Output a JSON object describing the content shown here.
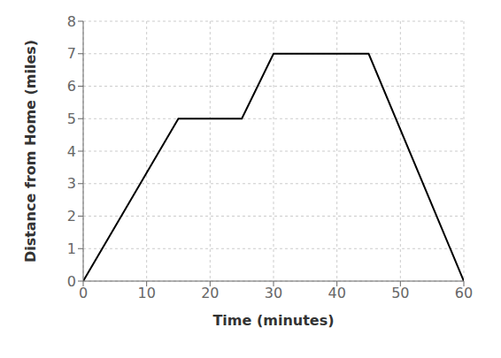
{
  "chart_data": {
    "type": "line",
    "x": [
      0,
      15,
      25,
      30,
      45,
      60
    ],
    "values": [
      0,
      5,
      5,
      7,
      7,
      0
    ],
    "xlabel": "Time (minutes)",
    "ylabel": "Distance from Home (miles)",
    "xlim": [
      0,
      60
    ],
    "ylim": [
      0,
      8
    ],
    "xticks": [
      0,
      10,
      20,
      30,
      40,
      50,
      60
    ],
    "yticks": [
      0,
      1,
      2,
      3,
      4,
      5,
      6,
      7,
      8
    ],
    "grid": true,
    "color": "#000000"
  }
}
